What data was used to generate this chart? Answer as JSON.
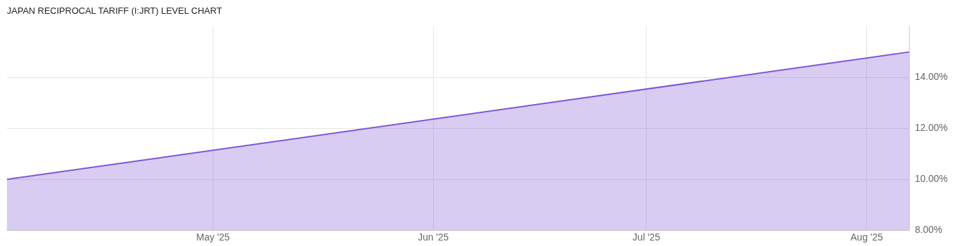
{
  "chart_data": {
    "type": "area",
    "title": "JAPAN RECIPROCAL TARIFF (I:JRT) LEVEL CHART",
    "x": [
      "2025-04-02",
      "2025-08-07"
    ],
    "series": [
      {
        "color": "#7e55d8",
        "values": [
          10,
          15
        ]
      }
    ],
    "xlim": [
      "2025-04-02",
      "2025-08-07"
    ],
    "xticks": [
      {
        "value": "2025-05-01",
        "label": "May '25"
      },
      {
        "value": "2025-06-01",
        "label": "Jun '25"
      },
      {
        "value": "2025-07-01",
        "label": "Jul '25"
      },
      {
        "value": "2025-08-01",
        "label": "Aug '25"
      }
    ],
    "ylim": [
      8,
      16
    ],
    "yticks": [
      {
        "value": 8,
        "label": "8.00%"
      },
      {
        "value": 10,
        "label": "10.00%"
      },
      {
        "value": 12,
        "label": "12.00%"
      },
      {
        "value": 14,
        "label": "14.00%"
      }
    ],
    "grid": true,
    "legend": false
  }
}
